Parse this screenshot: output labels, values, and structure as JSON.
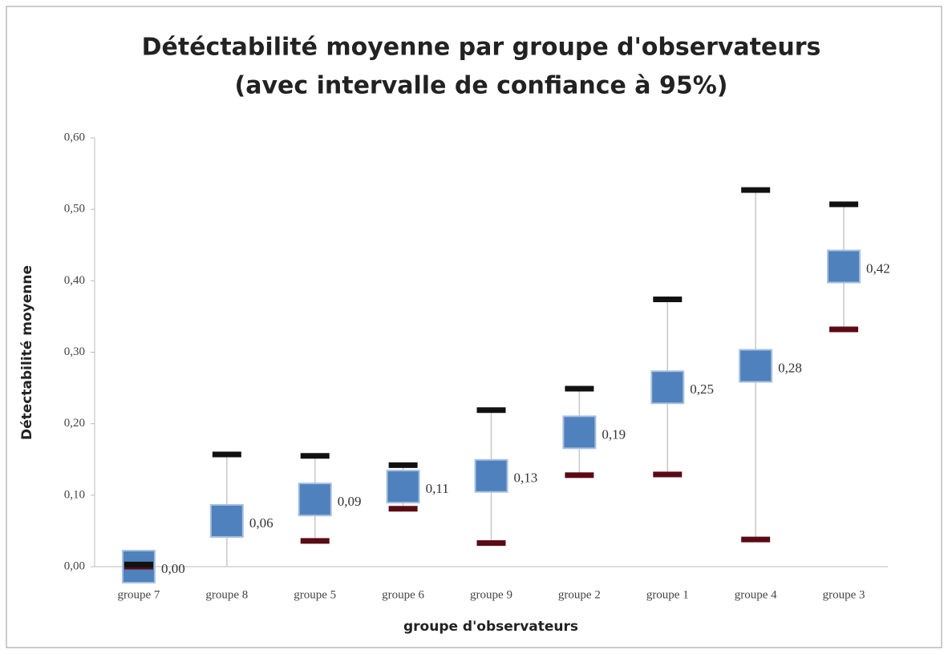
{
  "chart_data": {
    "type": "errorbar",
    "title": [
      "Détéctabilité moyenne par groupe d'observateurs",
      "(avec intervalle de confiance à 95%)"
    ],
    "y_label": "Détectabilité moyenne",
    "x_label": "groupe d'observateurs",
    "categories": [
      "groupe 7",
      "groupe 8",
      "groupe 5",
      "groupe 6",
      "groupe 9",
      "groupe 2",
      "groupe 1",
      "groupe 4",
      "groupe 3"
    ],
    "values": [
      0.0,
      0.064,
      0.094,
      0.112,
      0.127,
      0.188,
      0.251,
      0.281,
      0.42
    ],
    "value_labels": [
      "0,00",
      "0,06",
      "0,09",
      "0,11",
      "0,13",
      "0,19",
      "0,25",
      "0,28",
      "0,42"
    ],
    "upper": [
      0.003,
      0.157,
      0.155,
      0.142,
      0.219,
      0.249,
      0.374,
      0.527,
      0.507
    ],
    "lower": [
      0.0,
      null,
      0.036,
      0.081,
      0.033,
      0.128,
      0.129,
      0.038,
      0.332
    ],
    "color": "#4f81bd",
    "upper_color": "#111111",
    "lower_color": "#5a0a14",
    "ylim": [
      0,
      0.6
    ],
    "yticks": [
      {
        "value": 0,
        "label": "0,00"
      },
      {
        "value": 0.1,
        "label": "0,10"
      },
      {
        "value": 0.2,
        "label": "0,20"
      },
      {
        "value": 0.3,
        "label": "0,30"
      },
      {
        "value": 0.4,
        "label": "0,40"
      },
      {
        "value": 0.5,
        "label": "0,50"
      },
      {
        "value": 0.6,
        "label": "0,60"
      }
    ],
    "grid": false
  }
}
